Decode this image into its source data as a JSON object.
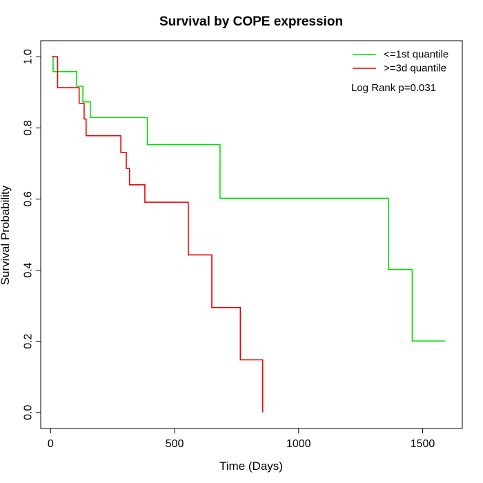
{
  "chart_data": {
    "type": "line",
    "title": "Survival by COPE expression",
    "xlabel": "Time (Days)",
    "ylabel": "Survival Probability",
    "xlim": [
      -40,
      1660
    ],
    "ylim": [
      -0.045,
      1.045
    ],
    "xticks": [
      0,
      500,
      1000,
      1500
    ],
    "yticks": [
      0.0,
      0.2,
      0.4,
      0.6,
      0.8,
      1.0
    ],
    "xtick_labels": [
      "0",
      "500",
      "1000",
      "1500"
    ],
    "ytick_labels": [
      "0.0",
      "0.2",
      "0.4",
      "0.6",
      "0.8",
      "1.0"
    ],
    "legend_position": "top-right",
    "annotation": "Log Rank p=0.031",
    "grid": false,
    "series": [
      {
        "name": "<=1st quantile",
        "color": "#00e000",
        "steps": [
          [
            5,
            1.0
          ],
          [
            10,
            0.958
          ],
          [
            105,
            0.917
          ],
          [
            130,
            0.873
          ],
          [
            160,
            0.829
          ],
          [
            390,
            0.753
          ],
          [
            683,
            0.602
          ],
          [
            1362,
            0.402
          ],
          [
            1458,
            0.201
          ],
          [
            1590,
            0.201
          ]
        ]
      },
      {
        "name": ">=3d quantile",
        "color": "#ee0000",
        "steps": [
          [
            5,
            1.0
          ],
          [
            28,
            0.913
          ],
          [
            115,
            0.869
          ],
          [
            135,
            0.825
          ],
          [
            143,
            0.778
          ],
          [
            283,
            0.731
          ],
          [
            305,
            0.686
          ],
          [
            318,
            0.64
          ],
          [
            380,
            0.591
          ],
          [
            555,
            0.443
          ],
          [
            650,
            0.295
          ],
          [
            765,
            0.148
          ],
          [
            855,
            0.0
          ]
        ]
      }
    ]
  }
}
